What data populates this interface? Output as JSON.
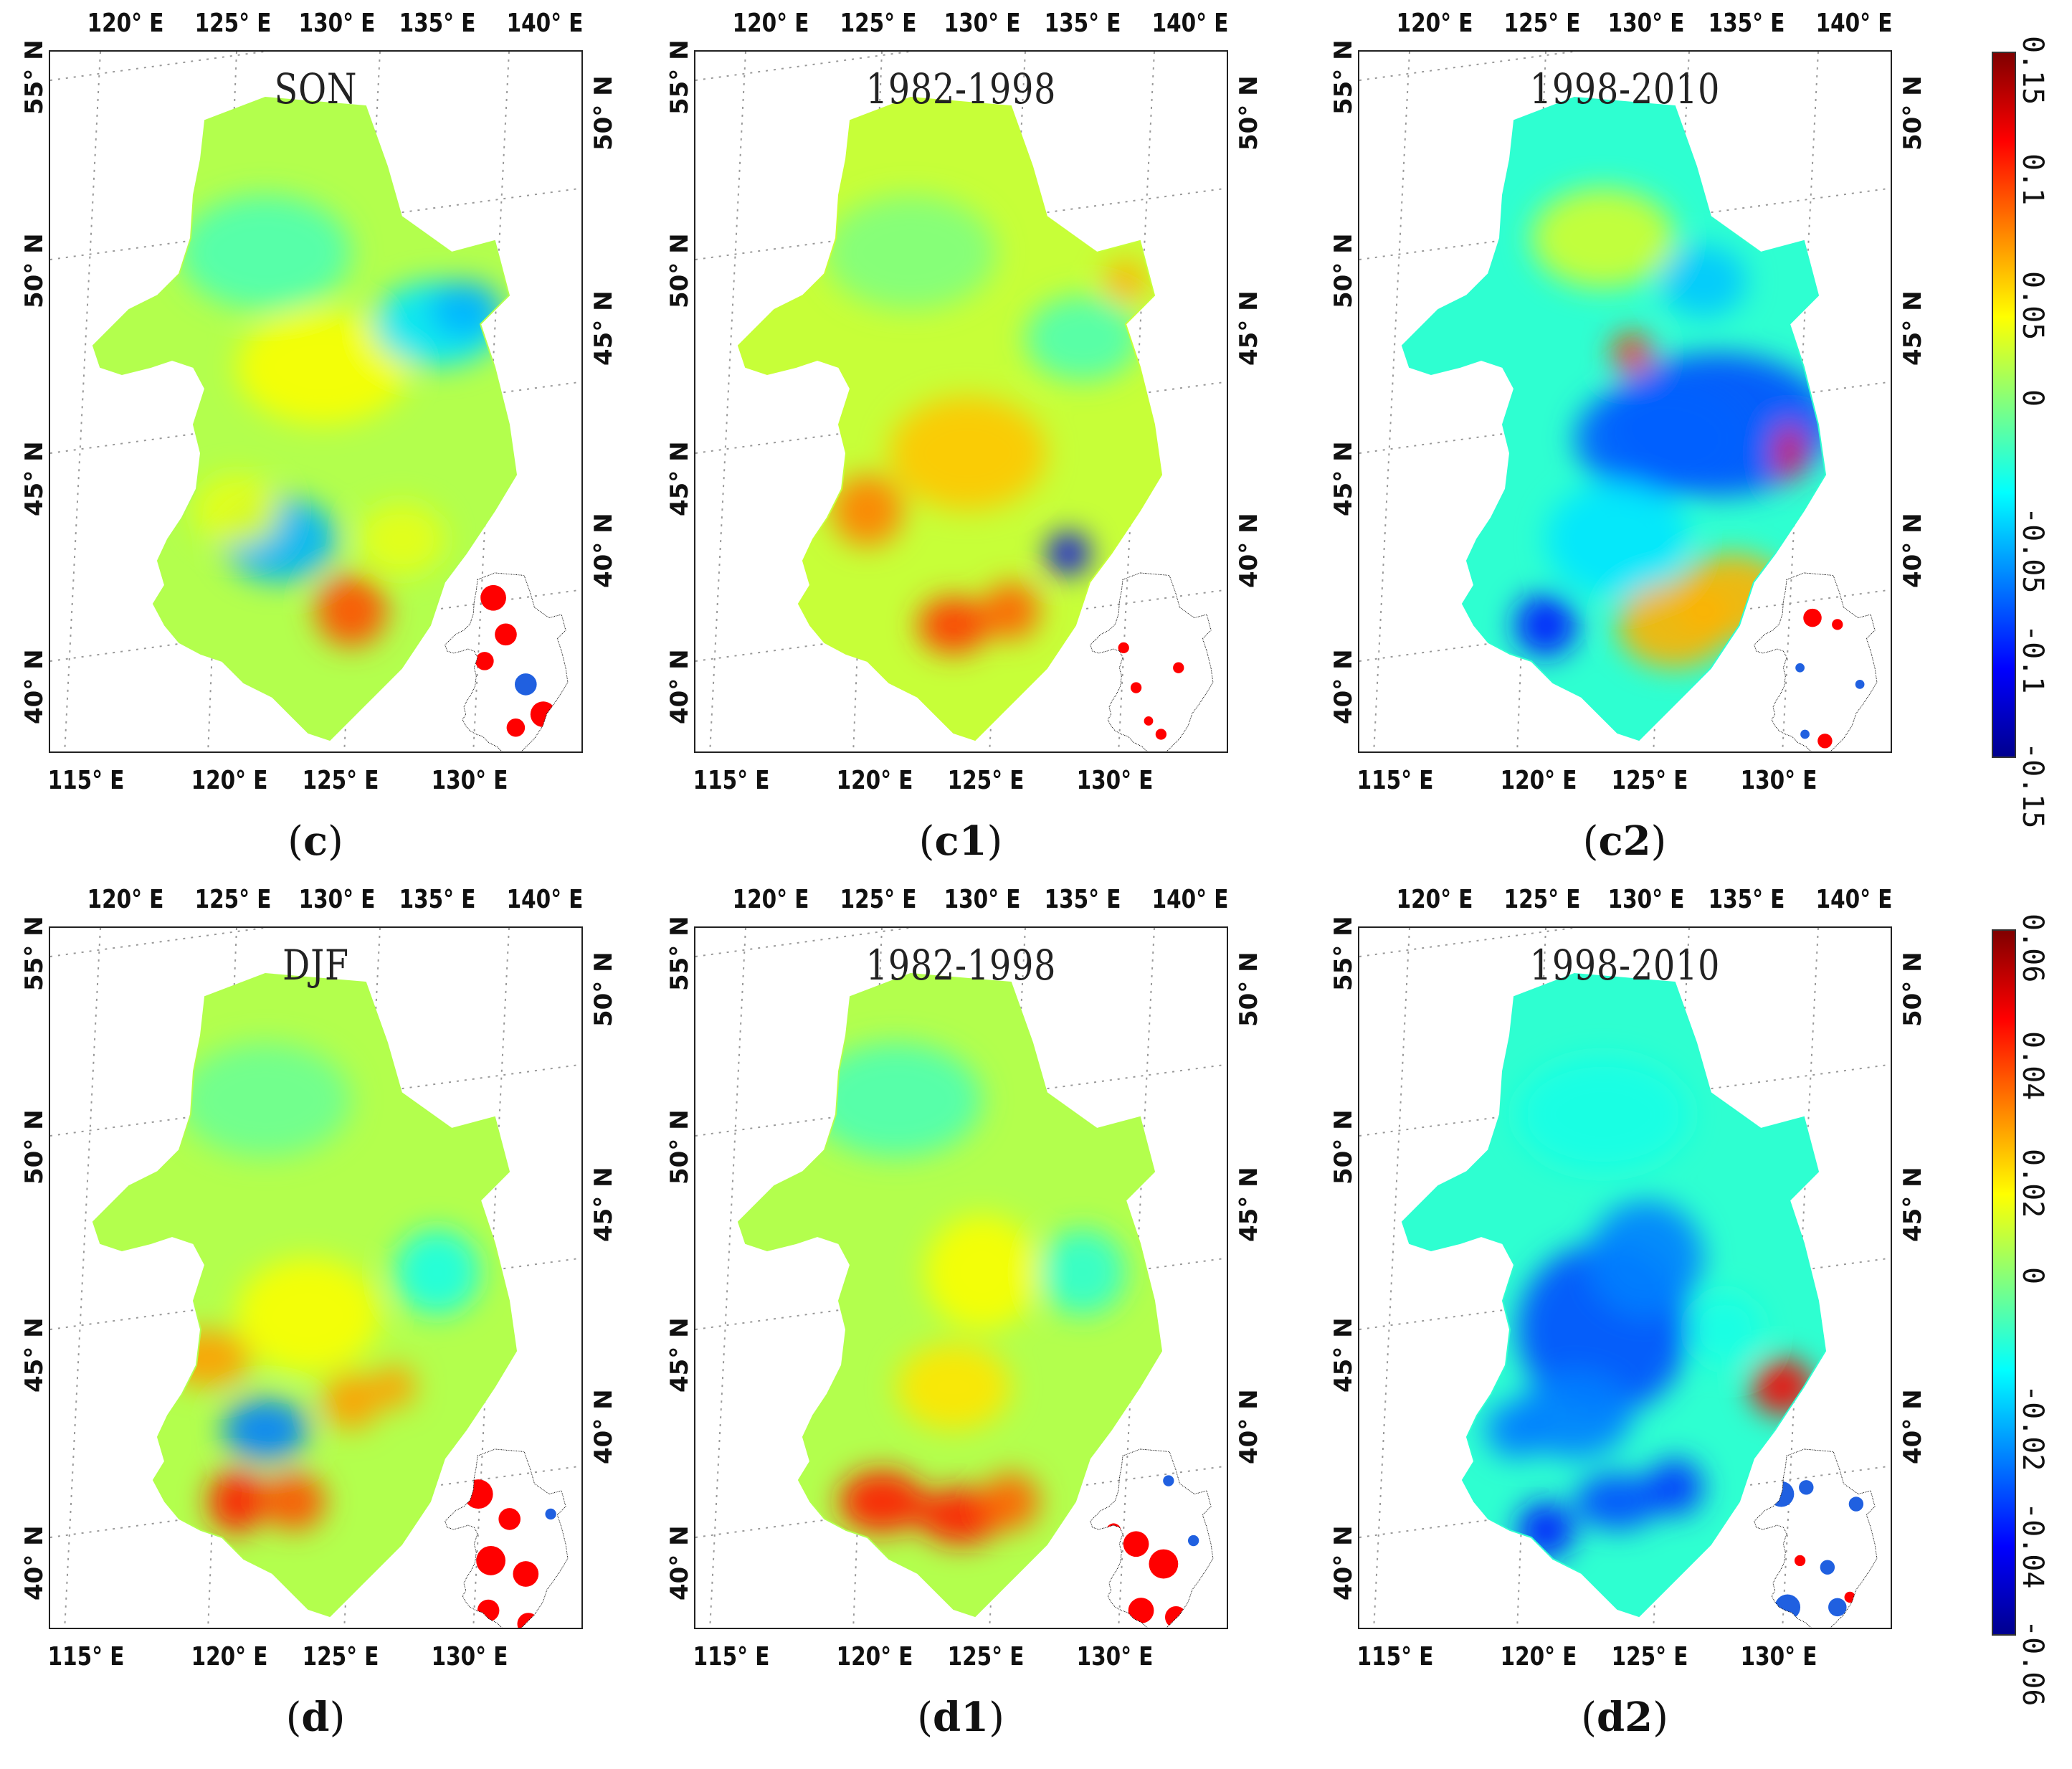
{
  "figure": {
    "panels": [
      {
        "id": "c",
        "title": "SON",
        "caption": "c",
        "seed": 1,
        "style": "son",
        "inset": "c"
      },
      {
        "id": "c1",
        "title": "1982-1998",
        "caption": "c1",
        "seed": 2,
        "style": "son1",
        "inset": "c1"
      },
      {
        "id": "c2",
        "title": "1998-2010",
        "caption": "c2",
        "seed": 3,
        "style": "son2",
        "inset": "c2"
      },
      {
        "id": "d",
        "title": "DJF",
        "caption": "d",
        "seed": 4,
        "style": "djf",
        "inset": "d"
      },
      {
        "id": "d1",
        "title": "1982-1998",
        "caption": "d1",
        "seed": 5,
        "style": "djf1",
        "inset": "d1"
      },
      {
        "id": "d2",
        "title": "1998-2010",
        "caption": "d2",
        "seed": 6,
        "style": "djf2",
        "inset": "d2"
      }
    ],
    "axes": {
      "top_ticks": [
        "120° E",
        "125° E",
        "130° E",
        "135° E",
        "140° E"
      ],
      "bottom_ticks": [
        "115° E",
        "120° E",
        "125° E",
        "130° E"
      ],
      "left_ticks": [
        "55° N",
        "50° N",
        "45° N",
        "40° N"
      ],
      "right_ticks": [
        "50° N",
        "45° N",
        "40° N"
      ]
    },
    "colorbars": [
      {
        "row": "c",
        "labels": [
          "0.15",
          "0.1",
          "0.05",
          "0",
          "-0.05",
          "-0.1",
          "-0.15"
        ],
        "min": -0.15,
        "max": 0.15
      },
      {
        "row": "d",
        "labels": [
          "0.06",
          "0.04",
          "0.02",
          "0",
          "-0.02",
          "-0.04",
          "-0.06"
        ],
        "min": -0.06,
        "max": 0.06
      }
    ],
    "colormap": [
      "#00008f",
      "#0000ff",
      "#0080ff",
      "#00ffff",
      "#80ff80",
      "#ffff00",
      "#ff8000",
      "#ff0000",
      "#800000"
    ],
    "inset_colors": {
      "positive": "#ff0000",
      "negative": "#2060e0",
      "outline": "#000000"
    }
  }
}
